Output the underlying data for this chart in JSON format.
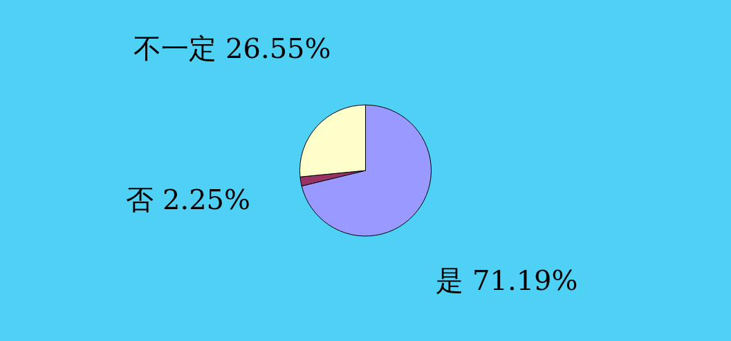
{
  "chart_data": {
    "type": "pie",
    "categories": [
      "是",
      "否",
      "不一定"
    ],
    "values": [
      71.19,
      2.25,
      26.55
    ],
    "value_labels": [
      "71.19%",
      "2.25%",
      "26.55%"
    ],
    "colors": [
      "#9999ff",
      "#993366",
      "#ffffcc"
    ],
    "legend": false
  }
}
